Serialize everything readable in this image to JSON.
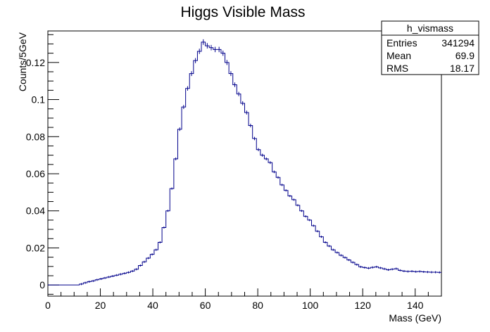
{
  "chart_data": {
    "type": "histogram",
    "title": "Higgs Visible Mass",
    "xlabel": "Mass (GeV)",
    "ylabel": "Counts/5GeV",
    "xlim": [
      0,
      150
    ],
    "ylim": [
      -0.006,
      0.137
    ],
    "xticks": [
      0,
      20,
      40,
      60,
      80,
      100,
      120,
      140
    ],
    "yticks": [
      0,
      0.02,
      0.04,
      0.06,
      0.08,
      0.1,
      0.12
    ],
    "ytick_labels": [
      "0",
      "0.02",
      "0.04",
      "0.06",
      "0.08",
      "0.1",
      "0.12"
    ],
    "bin_width": 1.5,
    "bin_start": 0,
    "values": [
      0,
      0,
      0,
      0,
      0,
      0,
      0,
      0,
      0.0005,
      0.0012,
      0.0018,
      0.0022,
      0.0028,
      0.0033,
      0.0038,
      0.0043,
      0.0048,
      0.0053,
      0.0058,
      0.0063,
      0.0068,
      0.0075,
      0.0085,
      0.0105,
      0.0125,
      0.0145,
      0.0165,
      0.019,
      0.023,
      0.031,
      0.04,
      0.052,
      0.068,
      0.084,
      0.096,
      0.106,
      0.114,
      0.121,
      0.126,
      0.131,
      0.129,
      0.128,
      0.127,
      0.127,
      0.125,
      0.12,
      0.114,
      0.108,
      0.103,
      0.098,
      0.093,
      0.086,
      0.079,
      0.073,
      0.07,
      0.068,
      0.066,
      0.061,
      0.058,
      0.054,
      0.051,
      0.048,
      0.046,
      0.043,
      0.04,
      0.037,
      0.035,
      0.032,
      0.029,
      0.026,
      0.023,
      0.021,
      0.019,
      0.0175,
      0.016,
      0.0148,
      0.0135,
      0.0122,
      0.011,
      0.0098,
      0.0094,
      0.0091,
      0.0095,
      0.0098,
      0.0092,
      0.0087,
      0.0082,
      0.0085,
      0.0088,
      0.0079,
      0.0075,
      0.0073,
      0.0074,
      0.0072,
      0.0073,
      0.0071,
      0.007,
      0.0069,
      0.0069,
      0.0068
    ],
    "line_color": "#00008b",
    "stats": {
      "name": "h_vismass",
      "rows": [
        {
          "label": "Entries",
          "value": "341294"
        },
        {
          "label": "Mean",
          "value": "69.9"
        },
        {
          "label": "RMS",
          "value": "18.17"
        }
      ]
    }
  }
}
